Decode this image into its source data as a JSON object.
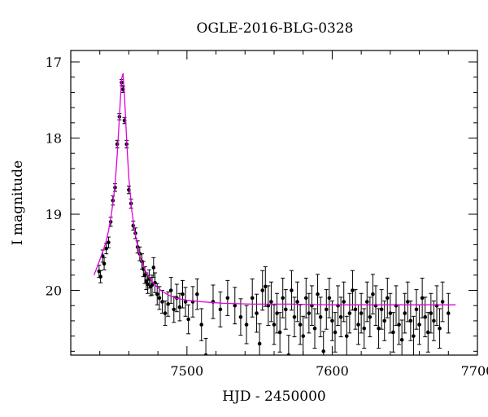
{
  "chart_data": {
    "type": "scatter",
    "title": "OGLE-2016-BLG-0328",
    "xlabel": "HJD - 2450000",
    "ylabel": "I magnitude",
    "xlim": [
      7420,
      7700
    ],
    "ylim": [
      20.85,
      16.85
    ],
    "y_inverted": true,
    "x_ticks": [
      7500,
      7600,
      7700
    ],
    "y_ticks": [
      17,
      18,
      19,
      20
    ],
    "grid": false,
    "legend": "none",
    "colors": {
      "points": "#000000",
      "model": "#e000e0",
      "axes": "#000000"
    },
    "series": [
      {
        "kind": "points-with-errorbars",
        "x": [
          7439.5,
          7440.5,
          7442.0,
          7443.0,
          7444.5,
          7446.0,
          7447.5,
          7449.0,
          7450.5,
          7452.0,
          7453.5,
          7455.0,
          7456.0,
          7457.0,
          7458.5,
          7460.0,
          7461.5,
          7463.0,
          7464.5,
          7466.0,
          7467.5,
          7469.0,
          7470.0,
          7471.0,
          7472.0,
          7473.0,
          7474.0,
          7475.0,
          7476.0,
          7477.0,
          7478.0,
          7479.5,
          7481.0,
          7483.0,
          7485.0,
          7487.0,
          7489.0,
          7491.0,
          7493.0,
          7495.0,
          7497.0,
          7499.0,
          7501.0,
          7504.0,
          7507.0,
          7510.0,
          7513.0,
          7518.0,
          7523.0,
          7528.0,
          7533.0,
          7537.0,
          7541.0,
          7545.0,
          7548.0,
          7550.0,
          7552.0,
          7554.0,
          7556.0,
          7558.0,
          7560.0,
          7562.0,
          7564.0,
          7566.0,
          7568.0,
          7570.0,
          7572.0,
          7574.0,
          7576.0,
          7578.0,
          7580.0,
          7582.0,
          7584.0,
          7586.0,
          7588.0,
          7590.0,
          7592.0,
          7594.0,
          7596.0,
          7598.0,
          7600.0,
          7602.0,
          7604.0,
          7606.0,
          7608.0,
          7610.0,
          7612.0,
          7614.0,
          7616.0,
          7618.0,
          7620.0,
          7622.0,
          7624.0,
          7626.0,
          7628.0,
          7630.0,
          7632.0,
          7634.0,
          7636.0,
          7638.0,
          7640.0,
          7642.0,
          7644.0,
          7646.0,
          7648.0,
          7650.0,
          7652.0,
          7654.0,
          7656.0,
          7658.0,
          7660.0,
          7662.0,
          7664.0,
          7666.0,
          7668.0,
          7670.0,
          7672.0,
          7674.0,
          7676.0,
          7680.0
        ],
        "y": [
          19.75,
          19.82,
          19.55,
          19.65,
          19.45,
          19.37,
          19.1,
          18.82,
          18.65,
          18.08,
          17.72,
          17.27,
          17.36,
          17.77,
          18.08,
          18.68,
          18.86,
          19.15,
          19.25,
          19.43,
          19.52,
          19.62,
          19.72,
          19.8,
          19.88,
          19.92,
          19.85,
          19.95,
          19.93,
          19.7,
          19.9,
          20.05,
          20.1,
          20.15,
          20.3,
          20.18,
          20.0,
          20.25,
          20.1,
          20.22,
          20.05,
          20.15,
          20.38,
          20.15,
          20.05,
          20.45,
          20.85,
          20.15,
          20.25,
          20.1,
          20.2,
          20.35,
          20.45,
          20.1,
          20.3,
          20.7,
          20.0,
          19.95,
          20.2,
          20.15,
          20.45,
          20.3,
          20.55,
          20.1,
          20.25,
          20.85,
          20.0,
          20.35,
          20.15,
          20.45,
          20.6,
          20.1,
          20.3,
          20.2,
          20.5,
          20.05,
          20.35,
          20.8,
          20.25,
          20.1,
          20.4,
          20.55,
          20.2,
          20.35,
          20.15,
          20.6,
          20.3,
          20.0,
          20.25,
          20.45,
          20.3,
          20.5,
          20.15,
          20.35,
          20.05,
          20.2,
          20.5,
          20.25,
          20.4,
          20.1,
          20.3,
          20.55,
          20.2,
          20.45,
          20.65,
          20.3,
          20.15,
          20.4,
          20.6,
          20.25,
          20.45,
          20.1,
          20.35,
          20.55,
          20.3,
          20.4,
          20.2,
          20.5,
          20.15,
          20.3
        ],
        "yerr": [
          0.08,
          0.08,
          0.08,
          0.08,
          0.07,
          0.07,
          0.06,
          0.06,
          0.05,
          0.05,
          0.04,
          0.04,
          0.04,
          0.04,
          0.05,
          0.05,
          0.06,
          0.06,
          0.07,
          0.08,
          0.09,
          0.1,
          0.1,
          0.11,
          0.11,
          0.12,
          0.12,
          0.12,
          0.13,
          0.13,
          0.13,
          0.14,
          0.15,
          0.15,
          0.16,
          0.16,
          0.17,
          0.17,
          0.18,
          0.18,
          0.18,
          0.19,
          0.19,
          0.2,
          0.2,
          0.21,
          0.22,
          0.22,
          0.23,
          0.23,
          0.24,
          0.24,
          0.25,
          0.25,
          0.25,
          0.26,
          0.26,
          0.26,
          0.26,
          0.26,
          0.26,
          0.26,
          0.26,
          0.26,
          0.26,
          0.26,
          0.26,
          0.26,
          0.26,
          0.26,
          0.26,
          0.26,
          0.26,
          0.26,
          0.26,
          0.26,
          0.26,
          0.26,
          0.26,
          0.26,
          0.26,
          0.26,
          0.26,
          0.26,
          0.26,
          0.26,
          0.26,
          0.26,
          0.26,
          0.26,
          0.26,
          0.26,
          0.26,
          0.26,
          0.26,
          0.26,
          0.26,
          0.26,
          0.26,
          0.26,
          0.26,
          0.26,
          0.26,
          0.26,
          0.26,
          0.26,
          0.26,
          0.26,
          0.26,
          0.26,
          0.26,
          0.26,
          0.26,
          0.26,
          0.26,
          0.26,
          0.26,
          0.26,
          0.26,
          0.26
        ]
      },
      {
        "kind": "model-curve",
        "x": [
          7436,
          7440,
          7444,
          7446,
          7448,
          7450,
          7451,
          7452,
          7453,
          7454,
          7455,
          7456,
          7457,
          7458,
          7459,
          7460,
          7462,
          7464,
          7466,
          7468,
          7470,
          7472,
          7475,
          7478,
          7482,
          7487,
          7492,
          7500,
          7510,
          7525,
          7545,
          7570,
          7600,
          7640,
          7685
        ],
        "y": [
          19.8,
          19.6,
          19.38,
          19.22,
          19.0,
          18.7,
          18.48,
          18.22,
          17.9,
          17.55,
          17.22,
          17.15,
          17.45,
          17.85,
          18.2,
          18.52,
          18.95,
          19.22,
          19.42,
          19.57,
          19.68,
          19.77,
          19.86,
          19.93,
          20.0,
          20.06,
          20.1,
          20.13,
          20.15,
          20.17,
          20.18,
          20.18,
          20.19,
          20.19,
          20.19
        ]
      }
    ]
  }
}
